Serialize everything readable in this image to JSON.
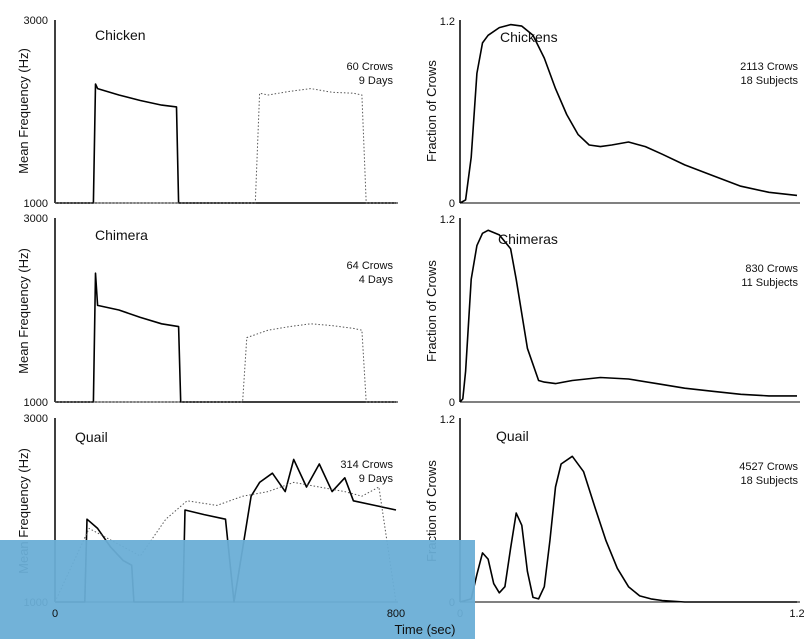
{
  "chart_data": [
    {
      "type": "line",
      "title": "Chicken",
      "annotation": [
        "60 Crows",
        "9 Days"
      ],
      "ylabel": "Mean Frequency (Hz)",
      "ylim": [
        1000,
        3000
      ],
      "yticks": [
        "3000",
        "1000"
      ],
      "xlim": [
        0,
        800
      ],
      "series": [
        {
          "style": "solid",
          "x": [
            0,
            85,
            90,
            95,
            100,
            150,
            200,
            250,
            285,
            290,
            295,
            800
          ],
          "y": [
            1000,
            1000,
            1000,
            2300,
            2250,
            2180,
            2120,
            2070,
            2050,
            1000,
            1000,
            1000
          ]
        },
        {
          "style": "dotted",
          "x": [
            0,
            470,
            480,
            500,
            550,
            600,
            650,
            700,
            720,
            730,
            800
          ],
          "y": [
            1000,
            1000,
            2200,
            2180,
            2220,
            2250,
            2210,
            2200,
            2180,
            1000,
            1000
          ]
        }
      ]
    },
    {
      "type": "line",
      "title": "Chimera",
      "annotation": [
        "64 Crows",
        "4 Days"
      ],
      "ylabel": "Mean Frequency (Hz)",
      "ylim": [
        1000,
        3000
      ],
      "yticks": [
        "3000",
        "1000"
      ],
      "xlim": [
        0,
        800
      ],
      "series": [
        {
          "style": "solid",
          "x": [
            0,
            90,
            95,
            100,
            150,
            200,
            250,
            290,
            295,
            800
          ],
          "y": [
            1000,
            1000,
            2400,
            2050,
            2000,
            1920,
            1850,
            1820,
            1000,
            1000
          ]
        },
        {
          "style": "dotted",
          "x": [
            0,
            440,
            450,
            500,
            550,
            600,
            650,
            700,
            720,
            730,
            800
          ],
          "y": [
            1000,
            1000,
            1700,
            1780,
            1820,
            1850,
            1830,
            1800,
            1780,
            1000,
            1000
          ]
        }
      ]
    },
    {
      "type": "line",
      "title": "Quail",
      "annotation": [
        "314 Crows",
        "9 Days"
      ],
      "ylabel": "Mean Frequency (Hz)",
      "ylim": [
        1000,
        3000
      ],
      "yticks": [
        "3000",
        "1000"
      ],
      "xlim": [
        0,
        800
      ],
      "xticks": [
        "0",
        "800"
      ],
      "series": [
        {
          "style": "solid",
          "x": [
            0,
            70,
            75,
            100,
            130,
            160,
            180,
            185,
            300,
            305,
            350,
            400,
            420,
            460,
            480,
            510,
            540,
            560,
            590,
            620,
            650,
            680,
            700,
            750,
            800
          ],
          "y": [
            1000,
            1000,
            1900,
            1800,
            1600,
            1450,
            1400,
            1000,
            1000,
            2000,
            1950,
            1900,
            1000,
            2150,
            2300,
            2400,
            2200,
            2550,
            2250,
            2500,
            2200,
            2350,
            2100,
            2050,
            2000
          ]
        },
        {
          "style": "dotted",
          "x": [
            0,
            80,
            120,
            160,
            200,
            260,
            310,
            380,
            440,
            500,
            560,
            620,
            680,
            720,
            760,
            800
          ],
          "y": [
            1000,
            1800,
            1700,
            1600,
            1500,
            1900,
            2100,
            2050,
            2150,
            2200,
            2300,
            2250,
            2200,
            2150,
            2250,
            1000
          ]
        }
      ]
    },
    {
      "type": "line",
      "title": "Chickens",
      "annotation": [
        "2113 Crows",
        "18 Subjects"
      ],
      "ylabel": "Fraction of Crows",
      "ylim": [
        0,
        1.2
      ],
      "yticks": [
        "1.2",
        "0"
      ],
      "xlim": [
        0,
        1.2
      ],
      "series": [
        {
          "x": [
            0,
            0.02,
            0.04,
            0.06,
            0.08,
            0.1,
            0.14,
            0.18,
            0.22,
            0.26,
            0.3,
            0.34,
            0.38,
            0.42,
            0.46,
            0.5,
            0.54,
            0.6,
            0.66,
            0.72,
            0.8,
            0.9,
            1.0,
            1.1,
            1.2
          ],
          "y": [
            0,
            0.02,
            0.3,
            0.85,
            1.05,
            1.1,
            1.15,
            1.17,
            1.16,
            1.1,
            0.95,
            0.75,
            0.58,
            0.45,
            0.38,
            0.37,
            0.38,
            0.4,
            0.37,
            0.32,
            0.25,
            0.18,
            0.11,
            0.07,
            0.05
          ]
        }
      ]
    },
    {
      "type": "line",
      "title": "Chimeras",
      "annotation": [
        "830 Crows",
        "11 Subjects"
      ],
      "ylabel": "Fraction of Crows",
      "ylim": [
        0,
        1.2
      ],
      "yticks": [
        "1.2",
        "0"
      ],
      "xlim": [
        0,
        1.2
      ],
      "series": [
        {
          "x": [
            0,
            0.01,
            0.02,
            0.04,
            0.06,
            0.08,
            0.1,
            0.14,
            0.18,
            0.2,
            0.24,
            0.28,
            0.3,
            0.34,
            0.4,
            0.5,
            0.6,
            0.7,
            0.8,
            0.9,
            1.0,
            1.1,
            1.2
          ],
          "y": [
            0,
            0.02,
            0.2,
            0.8,
            1.02,
            1.1,
            1.12,
            1.09,
            1.0,
            0.8,
            0.35,
            0.14,
            0.13,
            0.12,
            0.14,
            0.16,
            0.15,
            0.12,
            0.09,
            0.07,
            0.05,
            0.04,
            0.04
          ]
        }
      ]
    },
    {
      "type": "line",
      "title": "Quail",
      "annotation": [
        "4527 Crows",
        "18 Subjects"
      ],
      "ylabel": "Fraction of Crows",
      "ylim": [
        0,
        1.2
      ],
      "yticks": [
        "1.2",
        "0"
      ],
      "xlim": [
        0,
        1.2
      ],
      "xlabel": "Time (sec)",
      "xticks": [
        "0",
        "1.2"
      ],
      "series": [
        {
          "x": [
            0,
            0.04,
            0.06,
            0.08,
            0.1,
            0.12,
            0.14,
            0.16,
            0.18,
            0.2,
            0.22,
            0.24,
            0.26,
            0.28,
            0.3,
            0.32,
            0.34,
            0.36,
            0.4,
            0.44,
            0.48,
            0.52,
            0.56,
            0.6,
            0.64,
            0.68,
            0.72,
            0.8,
            1.0,
            1.2
          ],
          "y": [
            0,
            0.02,
            0.18,
            0.32,
            0.28,
            0.12,
            0.06,
            0.1,
            0.35,
            0.58,
            0.5,
            0.2,
            0.03,
            0.02,
            0.1,
            0.4,
            0.75,
            0.9,
            0.95,
            0.85,
            0.62,
            0.4,
            0.22,
            0.1,
            0.04,
            0.02,
            0.01,
            0.0,
            0.0,
            0.0
          ]
        }
      ]
    }
  ]
}
